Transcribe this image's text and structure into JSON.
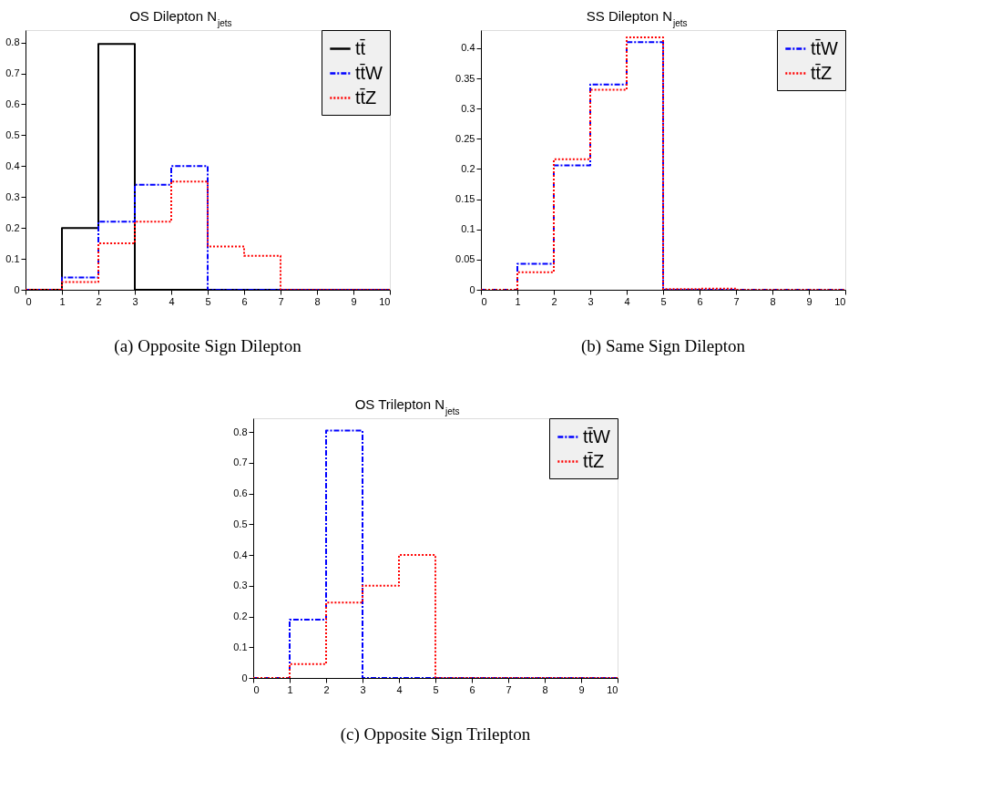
{
  "chart_data": [
    {
      "type": "histogram",
      "title": "OS Dilepton N$_{jets}$",
      "annotations": [
        "(a) Opposite Sign Dilepton"
      ],
      "bins": [
        0,
        1,
        2,
        3,
        4,
        5,
        6,
        7,
        8,
        9,
        10
      ],
      "series": [
        {
          "name": "tt̄",
          "color": "#000000",
          "line_style": "solid",
          "values": [
            0,
            0.2,
            0.795,
            0,
            0,
            0,
            0,
            0,
            0,
            0
          ]
        },
        {
          "name": "tt̄W",
          "color": "#0000ff",
          "line_style": "dashed",
          "values": [
            0,
            0.04,
            0.22,
            0.34,
            0.4,
            0,
            0,
            0,
            0,
            0
          ]
        },
        {
          "name": "tt̄Z",
          "color": "#ff0000",
          "line_style": "dotted",
          "values": [
            0,
            0.025,
            0.15,
            0.22,
            0.35,
            0.14,
            0.11,
            0,
            0,
            0
          ]
        }
      ],
      "xlim": [
        0,
        10
      ],
      "xticks": [
        0,
        1,
        2,
        3,
        4,
        5,
        6,
        7,
        8,
        9,
        10
      ],
      "ylim": [
        0,
        0.84
      ],
      "yticks": [
        0,
        0.1,
        0.2,
        0.3,
        0.4,
        0.5,
        0.6,
        0.7,
        0.8
      ],
      "grid": false,
      "legend": "top right"
    },
    {
      "type": "histogram",
      "title": "SS Dilepton N$_{jets}$",
      "annotations": [
        "(b) Same Sign Dilepton"
      ],
      "bins": [
        0,
        1,
        2,
        3,
        4,
        5,
        6,
        7,
        8,
        9,
        10
      ],
      "series": [
        {
          "name": "tt̄W",
          "color": "#0000ff",
          "line_style": "dashed",
          "values": [
            0,
            0.043,
            0.206,
            0.34,
            0.41,
            0,
            0,
            0,
            0,
            0
          ]
        },
        {
          "name": "tt̄Z",
          "color": "#ff0000",
          "line_style": "dotted",
          "values": [
            0,
            0.029,
            0.216,
            0.331,
            0.418,
            0.001,
            0.002,
            0,
            0,
            0
          ]
        }
      ],
      "xlim": [
        0,
        10
      ],
      "xticks": [
        0,
        1,
        2,
        3,
        4,
        5,
        6,
        7,
        8,
        9,
        10
      ],
      "ylim": [
        0,
        0.43
      ],
      "yticks": [
        0,
        0.05,
        0.1,
        0.15,
        0.2,
        0.25,
        0.3,
        0.35,
        0.4
      ],
      "grid": false,
      "legend": "top right"
    },
    {
      "type": "histogram",
      "title": "OS Trilepton N$_{jets}$",
      "annotations": [
        "(c) Opposite Sign Trilepton"
      ],
      "bins": [
        0,
        1,
        2,
        3,
        4,
        5,
        6,
        7,
        8,
        9,
        10
      ],
      "series": [
        {
          "name": "tt̄W",
          "color": "#0000ff",
          "line_style": "dashed",
          "values": [
            0,
            0.19,
            0.805,
            0,
            0,
            0,
            0,
            0,
            0,
            0
          ]
        },
        {
          "name": "tt̄Z",
          "color": "#ff0000",
          "line_style": "dotted",
          "values": [
            0,
            0.045,
            0.245,
            0.3,
            0.4,
            0,
            0,
            0,
            0,
            0
          ]
        }
      ],
      "xlim": [
        0,
        10
      ],
      "xticks": [
        0,
        1,
        2,
        3,
        4,
        5,
        6,
        7,
        8,
        9,
        10
      ],
      "ylim": [
        0,
        0.845
      ],
      "yticks": [
        0,
        0.1,
        0.2,
        0.3,
        0.4,
        0.5,
        0.6,
        0.7,
        0.8
      ],
      "grid": false,
      "legend": "top right"
    }
  ]
}
